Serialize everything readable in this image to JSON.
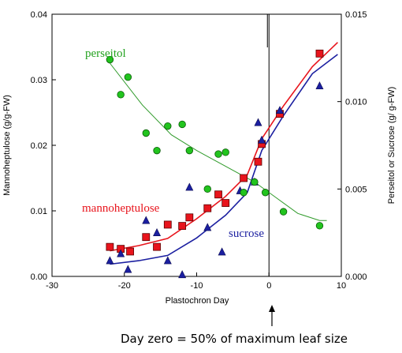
{
  "chart_data": {
    "type": "scatter",
    "xlabel": "Plastochron Day",
    "ylabel_left": "Mannoheptulose (g/g-FW)",
    "ylabel_right": "Perseitol or Sucrose (g/ g-FW)",
    "xlim": [
      -30,
      10
    ],
    "ylim_left": [
      0,
      0.04
    ],
    "ylim_right": [
      0,
      0.015
    ],
    "xticks": [
      -30,
      -20,
      -10,
      0,
      10
    ],
    "yticks_left": [
      "0.00",
      "0.01",
      "0.02",
      "0.03",
      "0.04"
    ],
    "yticks_right": [
      "0.000",
      "0.005",
      "0.010",
      "0.015"
    ],
    "yticks_left_values": [
      0,
      0.01,
      0.02,
      0.03,
      0.04
    ],
    "yticks_right_values": [
      0,
      0.005,
      0.01,
      0.015
    ],
    "grid": false,
    "series": [
      {
        "name": "mannoheptulose",
        "axis": "left",
        "marker": "square",
        "color": "#e8141c",
        "points": [
          [
            -22,
            0.0045
          ],
          [
            -20.5,
            0.0042
          ],
          [
            -19.2,
            0.0038
          ],
          [
            -17,
            0.006
          ],
          [
            -15.5,
            0.0045
          ],
          [
            -14,
            0.0079
          ],
          [
            -12,
            0.0077
          ],
          [
            -11,
            0.009
          ],
          [
            -8.5,
            0.0104
          ],
          [
            -7,
            0.0125
          ],
          [
            -6,
            0.0112
          ],
          [
            -3.5,
            0.015
          ],
          [
            -1.5,
            0.0175
          ],
          [
            -1,
            0.0202
          ],
          [
            1.5,
            0.0248
          ],
          [
            7,
            0.034
          ]
        ],
        "fit": [
          [
            -22,
            0.0039
          ],
          [
            -18,
            0.0047
          ],
          [
            -14,
            0.0058
          ],
          [
            -10,
            0.0088
          ],
          [
            -6,
            0.0122
          ],
          [
            -3,
            0.0155
          ],
          [
            -1,
            0.021
          ],
          [
            2,
            0.026
          ],
          [
            6,
            0.032
          ],
          [
            9.5,
            0.0357
          ]
        ]
      },
      {
        "name": "sucrose",
        "axis": "right",
        "marker": "triangle",
        "color": "#1b1fa0",
        "points": [
          [
            -22,
            0.0009
          ],
          [
            -20.5,
            0.0013
          ],
          [
            -19.5,
            0.0004
          ],
          [
            -17,
            0.0032
          ],
          [
            -15.5,
            0.0025
          ],
          [
            -14,
            0.0009
          ],
          [
            -12,
            0.0001
          ],
          [
            -11,
            0.0051
          ],
          [
            -8.5,
            0.0028
          ],
          [
            -6.5,
            0.0014
          ],
          [
            -4,
            0.0049
          ],
          [
            -2,
            0.0054
          ],
          [
            -1.5,
            0.0088
          ],
          [
            -1,
            0.0078
          ],
          [
            1.5,
            0.0095
          ],
          [
            7,
            0.0109
          ]
        ],
        "fit": [
          [
            -22,
            0.0007
          ],
          [
            -18,
            0.0009
          ],
          [
            -14,
            0.0012
          ],
          [
            -10,
            0.0022
          ],
          [
            -6,
            0.0035
          ],
          [
            -3,
            0.0048
          ],
          [
            -1,
            0.0072
          ],
          [
            2,
            0.0092
          ],
          [
            6,
            0.0116
          ],
          [
            9.5,
            0.0127
          ]
        ]
      },
      {
        "name": "perseitol",
        "axis": "right",
        "marker": "circle",
        "color": "#22c41e",
        "points": [
          [
            -22,
            0.0124
          ],
          [
            -20.5,
            0.0104
          ],
          [
            -19.5,
            0.0114
          ],
          [
            -17,
            0.0082
          ],
          [
            -15.5,
            0.0072
          ],
          [
            -14,
            0.0086
          ],
          [
            -12,
            0.0087
          ],
          [
            -11,
            0.0072
          ],
          [
            -8.5,
            0.005
          ],
          [
            -7,
            0.007
          ],
          [
            -6,
            0.0071
          ],
          [
            -3.5,
            0.0048
          ],
          [
            -2,
            0.0054
          ],
          [
            -0.5,
            0.0048
          ],
          [
            2,
            0.0037
          ],
          [
            7,
            0.0029
          ]
        ],
        "fit": [
          [
            -22,
            0.0122
          ],
          [
            -17.5,
            0.0098
          ],
          [
            -13.5,
            0.0081
          ],
          [
            -10,
            0.0072
          ],
          [
            -6,
            0.0063
          ],
          [
            -2,
            0.0054
          ],
          [
            1,
            0.0045
          ],
          [
            4,
            0.0036
          ],
          [
            7,
            0.0032
          ],
          [
            8,
            0.0032
          ]
        ]
      }
    ],
    "annotations": {
      "series_labels": [
        "perseitol",
        "mannoheptulose",
        "sucrose"
      ],
      "caption": "Day zero = 50% of maximum leaf size"
    }
  }
}
